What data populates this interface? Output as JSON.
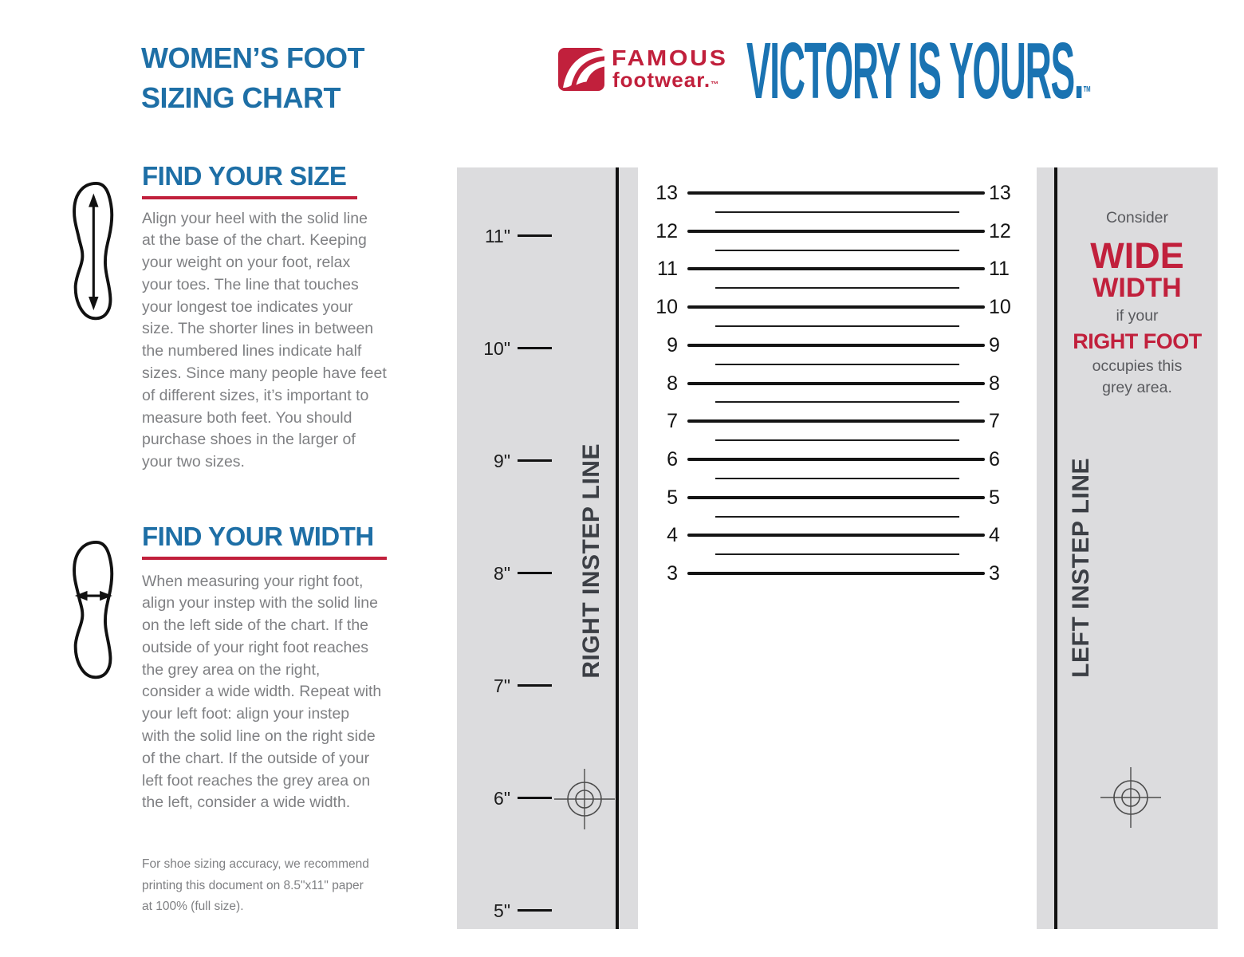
{
  "colors": {
    "heading_blue": "#1e6fa6",
    "tagline_blue": "#1a73b2",
    "brand_red": "#c1203c",
    "body_grey": "#7f8083",
    "panel_grey": "#dcdcde",
    "line_ink": "#141414",
    "instep_label_dark": "#3c3f45",
    "note_grey": "#595a5e"
  },
  "header": {
    "page_title": "WOMEN’S FOOT\nSIZING CHART",
    "brand_name_top": "FAMOUS",
    "brand_name_bottom": "footwear.",
    "brand_tm": "™",
    "tagline": "VICTORY IS YOURS.",
    "tagline_tm": "™"
  },
  "sections": {
    "find_size": {
      "heading": "FIND YOUR SIZE",
      "body": "Align your heel with the solid line\nat the base of the chart. Keeping\nyour weight on your foot, relax\nyour toes. The line that touches\nyour longest toe indicates your\nsize. The shorter lines in between\nthe numbered lines indicate half\nsizes. Since many people have feet\nof different sizes, it’s important to\nmeasure both feet. You should\npurchase shoes in the larger of\nyour two sizes."
    },
    "find_width": {
      "heading": "FIND YOUR WIDTH",
      "body": "When measuring your right foot,\nalign your instep with the solid line\non the left side of the chart. If the\noutside of your right foot reaches\nthe grey area on the right,\nconsider a wide width. Repeat with\nyour left foot: align your instep\nwith the solid line on the right side\nof the chart. If the outside of your\nleft foot reaches the grey area on\nthe left, consider a wide width."
    },
    "print_note": "For shoe sizing accuracy, we recommend\nprinting this document on 8.5\"x11\" paper\nat 100% (full size)."
  },
  "chart": {
    "type": "table",
    "inch_marks": [
      "11\"",
      "10\"",
      "9\"",
      "8\"",
      "7\"",
      "6\"",
      "5\""
    ],
    "sizes": [
      13,
      12,
      11,
      10,
      9,
      8,
      7,
      6,
      5,
      4,
      3
    ],
    "half_size_lines_between_whole_sizes": true,
    "right_instep_label": "RIGHT INSTEP LINE",
    "left_instep_label": "LEFT INSTEP LINE",
    "wide_note": {
      "consider": "Consider",
      "wide": "WIDE",
      "width": "WIDTH",
      "if_your": "if your",
      "right_foot": "RIGHT FOOT",
      "occupies": "occupies this\ngrey area."
    }
  }
}
